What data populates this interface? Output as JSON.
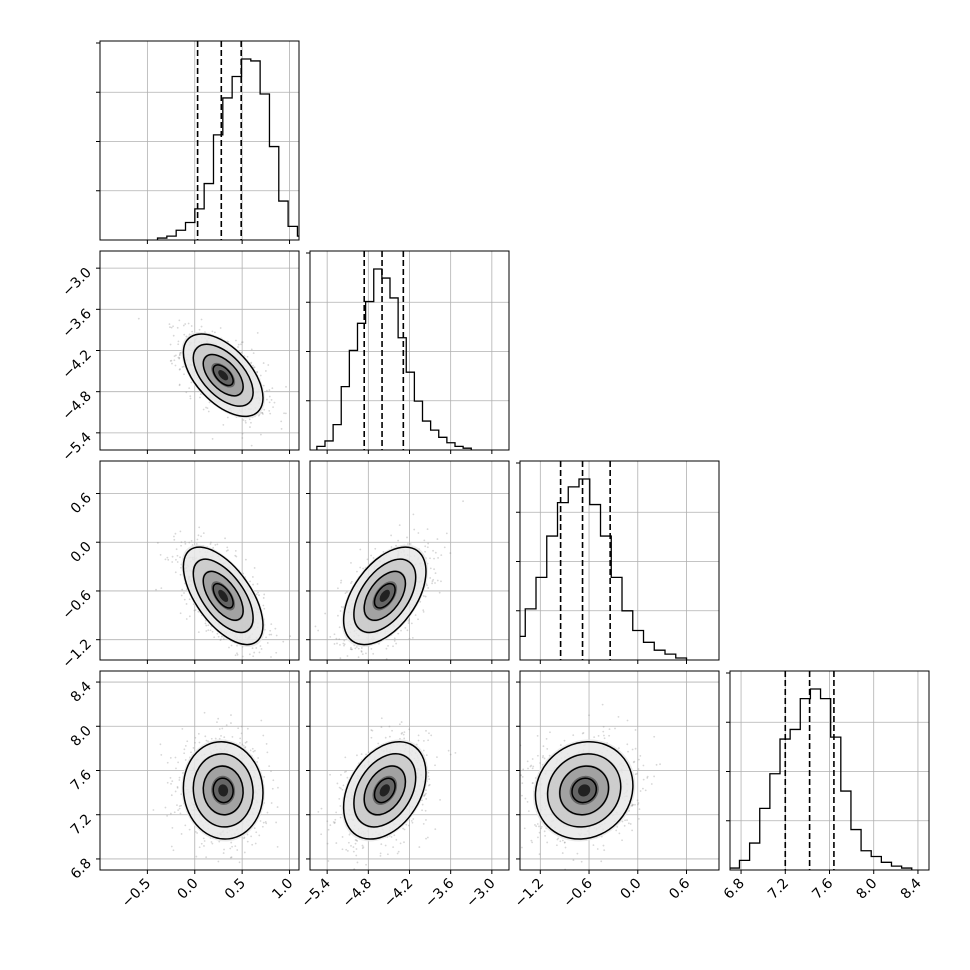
{
  "chart_data": {
    "type": "corner",
    "description_free": true,
    "grid": true,
    "parameters": [
      {
        "index": 0,
        "range": [
          -1.0,
          1.1
        ],
        "ticks": [
          "−0.5",
          "0.0",
          "0.5",
          "1.0"
        ],
        "tick_values": [
          -0.5,
          0.0,
          0.5,
          1.0
        ],
        "quantiles": [
          0.03,
          0.28,
          0.49
        ],
        "mean": 0.3,
        "sd": 0.21,
        "histogram": [
          1,
          2,
          5,
          9,
          16,
          29,
          54,
          73,
          84,
          93,
          92,
          75,
          48,
          20,
          7,
          2
        ]
      },
      {
        "index": 1,
        "range": [
          -5.65,
          -2.75
        ],
        "ticks": [
          "−5.4",
          "−4.8",
          "−4.2",
          "−3.6",
          "−3.0"
        ],
        "tick_values": [
          -5.4,
          -4.8,
          -4.2,
          -3.6,
          -3.0
        ],
        "quantiles": [
          -4.86,
          -4.6,
          -4.29
        ],
        "mean": -4.56,
        "sd": 0.3,
        "histogram": [
          2,
          5,
          14,
          35,
          55,
          70,
          82,
          100,
          95,
          84,
          62,
          43,
          27,
          16,
          11,
          7,
          4,
          2,
          1
        ]
      },
      {
        "index": 2,
        "range": [
          -1.45,
          1.0
        ],
        "ticks": [
          "−1.2",
          "−0.6",
          "0.0",
          "0.6"
        ],
        "tick_values": [
          -1.2,
          -0.6,
          0.0,
          0.6
        ],
        "quantiles": [
          -0.95,
          -0.68,
          -0.34
        ],
        "mean": -0.66,
        "sd": 0.3,
        "histogram": [
          4,
          12,
          26,
          42,
          63,
          80,
          88,
          92,
          79,
          63,
          42,
          25,
          15,
          9,
          5,
          3,
          1
        ]
      },
      {
        "index": 3,
        "range": [
          6.7,
          8.5
        ],
        "ticks": [
          "6.8",
          "7.2",
          "7.6",
          "8.0",
          "8.4"
        ],
        "tick_values": [
          6.8,
          7.2,
          7.6,
          8.0,
          8.4
        ],
        "quantiles": [
          7.2,
          7.42,
          7.64
        ],
        "mean": 7.42,
        "sd": 0.22,
        "histogram": [
          1,
          5,
          14,
          32,
          50,
          68,
          73,
          89,
          94,
          89,
          69,
          41,
          21,
          10,
          7,
          4,
          2,
          1
        ]
      }
    ],
    "correlations": [
      {
        "pair": [
          0,
          1
        ],
        "rho": -0.55
      },
      {
        "pair": [
          0,
          2
        ],
        "rho": -0.6
      },
      {
        "pair": [
          0,
          3
        ],
        "rho": -0.05
      },
      {
        "pair": [
          1,
          2
        ],
        "rho": 0.5
      },
      {
        "pair": [
          1,
          3
        ],
        "rho": 0.35
      },
      {
        "pair": [
          2,
          3
        ],
        "rho": 0.1
      }
    ],
    "contour_levels_sigma": [
      0.5,
      1.0,
      1.5,
      2.0
    ]
  }
}
